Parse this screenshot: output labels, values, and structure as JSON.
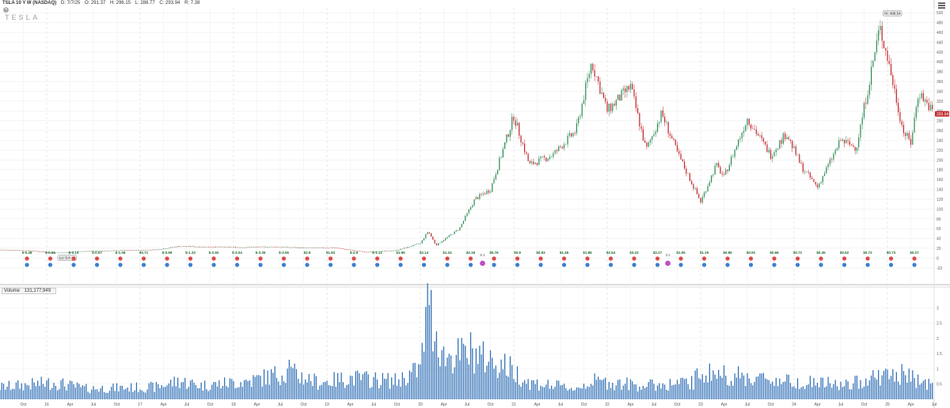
{
  "header": {
    "symbol": "TSLA 10 Y W (NASDAQ)",
    "date": "D: 7/7/25",
    "open": "O: 291.37",
    "high": "H: 296.15",
    "low": "L: 288.77",
    "close": "C: 293.94",
    "range": "R: 7.38"
  },
  "logo_text": "TESLA",
  "close_icon": "x-icon",
  "menu_icon": "hamburger-icon",
  "volume_label": {
    "name": "Volume",
    "value": "131,177,949"
  },
  "colors": {
    "up": "#2e8b57",
    "down": "#c0282d",
    "volume": "#2f6eb5",
    "split": "#c04fc4",
    "dividend": "#e04848",
    "earnings": "#3a7fd0"
  },
  "chart_data": [
    {
      "type": "candlestick",
      "title": "",
      "x_start": "2015-07",
      "x_end": "2025-07",
      "x_tick_labels": [
        "Oct",
        "16",
        "Apr",
        "Jul",
        "Oct",
        "17",
        "Apr",
        "Jul",
        "Oct",
        "18",
        "Apr",
        "Jul",
        "Oct",
        "19",
        "Apr",
        "Jul",
        "Oct",
        "20",
        "Apr",
        "Jul",
        "Oct",
        "21",
        "Apr",
        "Jul",
        "Oct",
        "22",
        "Apr",
        "Jul",
        "Oct",
        "23",
        "Apr",
        "Jul",
        "Oct",
        "24",
        "Apr",
        "Jul",
        "Oct",
        "25",
        "Apr",
        "Jul"
      ],
      "y_ticks": [
        -20,
        0,
        20,
        40,
        60,
        80,
        100,
        120,
        140,
        160,
        180,
        200,
        220,
        240,
        260,
        280,
        300,
        320,
        340,
        360,
        380,
        400,
        420,
        440,
        460,
        480,
        500
      ],
      "ylim": [
        -30,
        510
      ],
      "grid": true,
      "y_axis_side": "right",
      "price_path": [
        [
          "2015-07",
          17
        ],
        [
          "2015-11",
          15
        ],
        [
          "2016-02",
          10.5
        ],
        [
          "2016-06",
          14
        ],
        [
          "2017-03",
          17
        ],
        [
          "2017-06",
          24
        ],
        [
          "2017-09",
          23
        ],
        [
          "2018-02",
          22
        ],
        [
          "2018-06",
          23
        ],
        [
          "2018-10",
          21
        ],
        [
          "2019-02",
          21
        ],
        [
          "2019-06",
          12
        ],
        [
          "2019-10",
          16
        ],
        [
          "2020-01",
          30
        ],
        [
          "2020-02",
          55
        ],
        [
          "2020-03",
          26
        ],
        [
          "2020-06",
          60
        ],
        [
          "2020-08",
          120
        ],
        [
          "2020-10",
          140
        ],
        [
          "2021-01",
          290
        ],
        [
          "2021-03",
          190
        ],
        [
          "2021-06",
          210
        ],
        [
          "2021-09",
          260
        ],
        [
          "2021-11",
          400
        ],
        [
          "2022-01",
          300
        ],
        [
          "2022-04",
          350
        ],
        [
          "2022-06",
          220
        ],
        [
          "2022-08",
          295
        ],
        [
          "2022-10",
          215
        ],
        [
          "2023-01",
          115
        ],
        [
          "2023-03",
          190
        ],
        [
          "2023-04",
          165
        ],
        [
          "2023-07",
          285
        ],
        [
          "2023-10",
          210
        ],
        [
          "2023-12",
          255
        ],
        [
          "2024-02",
          185
        ],
        [
          "2024-04",
          145
        ],
        [
          "2024-07",
          240
        ],
        [
          "2024-09",
          225
        ],
        [
          "2024-12",
          470
        ],
        [
          "2025-01",
          410
        ],
        [
          "2025-03",
          260
        ],
        [
          "2025-04",
          235
        ],
        [
          "2025-05",
          340
        ],
        [
          "2025-07",
          294
        ]
      ],
      "annotations": [
        {
          "text": "Hi: 488.54",
          "date": "2024-12",
          "value": 488.54
        },
        {
          "text": "Lo: 9.4",
          "date": "2016-02",
          "value": 9.4
        }
      ],
      "last_price": {
        "text": "293.94",
        "value": 293.94
      },
      "events": {
        "labels": [
          "$-0.48",
          "$-0.55",
          "$-0.13",
          "$-0.57",
          "$-1.08",
          "$0.71",
          "$-0.69",
          "$-1.33",
          "$-2.92",
          "$-3.04",
          "$-3.35",
          "$-3.06",
          "$2.9",
          "$1.93",
          "$-2.9",
          "$-1.12",
          "$1.96",
          "$2.14",
          "$1.24",
          "$2.18",
          "$0.76",
          "$0.9",
          "$0.93",
          "$1.45",
          "$1.86",
          "$2.54",
          "$3.22",
          "$2.27",
          "$1.05",
          "$1.19",
          "$0.85",
          "$0.91",
          "$0.66",
          "$0.71",
          "$0.45",
          "$0.52",
          "$0.72",
          "$0.73",
          "$0.27"
        ],
        "split_labels": [
          "5:1",
          "3:1"
        ]
      }
    },
    {
      "type": "bar",
      "title": "Volume",
      "y_ticks": [
        0.5,
        1,
        1.5,
        2,
        2.5,
        3
      ],
      "ylim": [
        0,
        3.35
      ],
      "unit_note": "",
      "volume_path": [
        [
          "2015-07",
          0.4
        ],
        [
          "2016-02",
          0.55
        ],
        [
          "2016-06",
          0.35
        ],
        [
          "2017-03",
          0.4
        ],
        [
          "2017-06",
          0.6
        ],
        [
          "2017-09",
          0.45
        ],
        [
          "2018-03",
          0.6
        ],
        [
          "2018-08",
          0.9
        ],
        [
          "2018-12",
          0.55
        ],
        [
          "2019-04",
          0.7
        ],
        [
          "2019-10",
          0.6
        ],
        [
          "2020-01",
          1.0
        ],
        [
          "2020-02",
          3.1
        ],
        [
          "2020-04",
          1.4
        ],
        [
          "2020-08",
          1.5
        ],
        [
          "2020-12",
          1.1
        ],
        [
          "2021-03",
          0.55
        ],
        [
          "2021-09",
          0.35
        ],
        [
          "2021-11",
          0.6
        ],
        [
          "2022-06",
          0.45
        ],
        [
          "2022-12",
          0.55
        ],
        [
          "2023-01",
          0.9
        ],
        [
          "2023-06",
          0.75
        ],
        [
          "2023-12",
          0.6
        ],
        [
          "2024-04",
          0.55
        ],
        [
          "2024-08",
          0.45
        ],
        [
          "2024-11",
          0.75
        ],
        [
          "2025-03",
          0.8
        ],
        [
          "2025-07",
          0.45
        ]
      ],
      "spikes": [
        [
          "2020-02-03",
          3.1
        ],
        [
          "2020-07-13",
          2.2
        ],
        [
          "2018-08-06",
          1.3
        ],
        [
          "2020-08-31",
          1.9
        ]
      ]
    }
  ]
}
